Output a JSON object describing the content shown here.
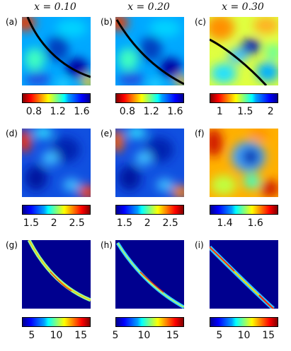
{
  "columns": [
    {
      "title": "x = 0.10"
    },
    {
      "title": "x = 0.20"
    },
    {
      "title": "x = 0.30"
    }
  ],
  "panels": [
    {
      "label": "(a)"
    },
    {
      "label": "(b)"
    },
    {
      "label": "(c)"
    },
    {
      "label": "(d)"
    },
    {
      "label": "(e)"
    },
    {
      "label": "(f)"
    },
    {
      "label": "(g)"
    },
    {
      "label": "(h)"
    },
    {
      "label": "(i)"
    }
  ],
  "colorbars": [
    {
      "scheme": "jet-reversed",
      "range": [
        0.6,
        1.75
      ],
      "ticks": [
        "0.8",
        "1.2",
        "1.6"
      ],
      "tick_values": [
        0.8,
        1.2,
        1.6
      ]
    },
    {
      "scheme": "jet-reversed",
      "range": [
        0.6,
        1.75
      ],
      "ticks": [
        "0.8",
        "1.2",
        "1.6"
      ],
      "tick_values": [
        0.8,
        1.2,
        1.6
      ]
    },
    {
      "scheme": "jet-reversed",
      "range": [
        0.8,
        2.15
      ],
      "ticks": [
        "1",
        "1.5",
        "2"
      ],
      "tick_values": [
        1.0,
        1.5,
        2.0
      ]
    },
    {
      "scheme": "jet",
      "range": [
        1.3,
        2.8
      ],
      "ticks": [
        "1.5",
        "2",
        "2.5"
      ],
      "tick_values": [
        1.5,
        2.0,
        2.5
      ]
    },
    {
      "scheme": "jet",
      "range": [
        1.3,
        2.8
      ],
      "ticks": [
        "1.5",
        "2",
        "2.5"
      ],
      "tick_values": [
        1.5,
        2.0,
        2.5
      ]
    },
    {
      "scheme": "jet",
      "range": [
        1.3,
        1.75
      ],
      "ticks": [
        "1.4",
        "1.6"
      ],
      "tick_values": [
        1.4,
        1.6
      ]
    },
    {
      "scheme": "jet",
      "range": [
        3,
        17
      ],
      "ticks": [
        "5",
        "10",
        "15"
      ],
      "tick_values": [
        5,
        10,
        15
      ]
    },
    {
      "scheme": "jet",
      "range": [
        5,
        17
      ],
      "ticks": [
        "5",
        "10",
        "15"
      ],
      "tick_values": [
        5,
        10,
        15
      ]
    },
    {
      "scheme": "jet",
      "range": [
        3,
        17
      ],
      "ticks": [
        "5",
        "10",
        "15"
      ],
      "tick_values": [
        5,
        10,
        15
      ]
    }
  ],
  "colors": {
    "line": "#000000"
  }
}
